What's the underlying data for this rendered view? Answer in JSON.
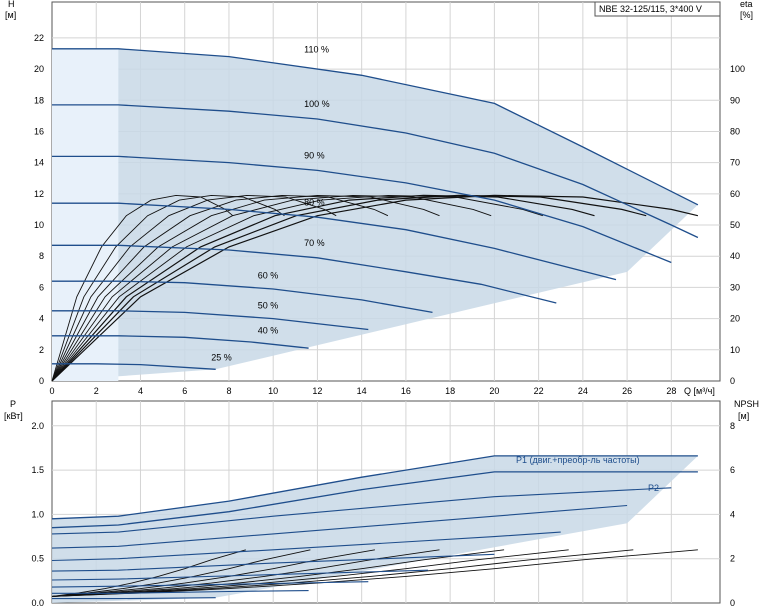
{
  "chart_data": [
    {
      "type": "line",
      "title": "NBE 32-125/115, 3*400 V",
      "y_label_left": "H",
      "y_unit_left": "[м]",
      "y_label_right": "eta",
      "y_unit_right": "[%]",
      "x_label": "Q [м³/ч]",
      "x_ticks": [
        0,
        2,
        4,
        6,
        8,
        10,
        12,
        14,
        16,
        18,
        20,
        22,
        24,
        26,
        28
      ],
      "xlim": [
        0,
        30.2
      ],
      "y_ticks_left": [
        0,
        2,
        4,
        6,
        8,
        10,
        12,
        14,
        16,
        18,
        20,
        22
      ],
      "ylim_left": [
        0,
        24.3
      ],
      "y_ticks_right": [
        0,
        10,
        20,
        30,
        40,
        50,
        60,
        70,
        80,
        90,
        100
      ],
      "ylim_right": [
        0,
        121.5
      ],
      "grid": true,
      "speed_curves": [
        {
          "name": "110 %",
          "x": [
            0,
            3,
            8,
            14,
            20,
            24,
            29.2
          ],
          "y": [
            21.3,
            21.3,
            20.8,
            19.6,
            17.8,
            15.0,
            11.3
          ]
        },
        {
          "name": "100 %",
          "x": [
            0,
            3,
            8,
            12,
            16,
            20,
            24,
            28,
            29.2
          ],
          "y": [
            17.7,
            17.7,
            17.3,
            16.8,
            15.9,
            14.6,
            12.6,
            10.0,
            9.2
          ]
        },
        {
          "name": "90 %",
          "x": [
            0,
            3,
            8,
            12,
            16,
            20,
            24,
            28
          ],
          "y": [
            14.4,
            14.4,
            14.0,
            13.5,
            12.7,
            11.6,
            9.9,
            7.6
          ]
        },
        {
          "name": "80 %",
          "x": [
            0,
            3,
            8,
            12,
            16,
            20,
            25.5
          ],
          "y": [
            11.4,
            11.4,
            11.0,
            10.5,
            9.7,
            8.5,
            6.5
          ]
        },
        {
          "name": "70 %",
          "x": [
            0,
            3,
            8,
            12,
            16,
            19.4,
            22.8
          ],
          "y": [
            8.7,
            8.7,
            8.4,
            7.9,
            7.0,
            6.2,
            5.0
          ]
        },
        {
          "name": "60 %",
          "x": [
            0,
            3,
            6,
            10,
            14,
            17.2
          ],
          "y": [
            6.4,
            6.4,
            6.3,
            5.9,
            5.2,
            4.4
          ]
        },
        {
          "name": "50 %",
          "x": [
            0,
            3,
            6,
            10,
            14.3
          ],
          "y": [
            4.5,
            4.5,
            4.4,
            4.0,
            3.3
          ]
        },
        {
          "name": "40 %",
          "x": [
            0,
            3,
            6,
            9,
            11.6
          ],
          "y": [
            2.9,
            2.9,
            2.8,
            2.5,
            2.1
          ]
        },
        {
          "name": "25 %",
          "x": [
            0,
            2,
            4,
            7.4
          ],
          "y": [
            1.1,
            1.1,
            1.05,
            0.75
          ]
        }
      ],
      "efficiency_curve_100": {
        "x": [
          0,
          4,
          8,
          12,
          16,
          20,
          24,
          28,
          29.2
        ],
        "eta": [
          0,
          27,
          43,
          53,
          58,
          59.5,
          59,
          55,
          53
        ]
      }
    },
    {
      "type": "line",
      "y_label_left": "P",
      "y_unit_left": "[кВт]",
      "y_label_right": "NPSH",
      "y_unit_right": "[м]",
      "y_ticks_left": [
        0.0,
        0.5,
        1.0,
        1.5,
        2.0
      ],
      "ylim_left": [
        0,
        2.28
      ],
      "y_ticks_right": [
        0,
        2,
        4,
        6,
        8
      ],
      "ylim_right": [
        0,
        9.12
      ],
      "xlim": [
        0,
        30.2
      ],
      "grid": true,
      "annotations": [
        "P1 (двиг.+преобр-ль частоты)",
        "P2"
      ],
      "power_curves": [
        {
          "name": "P1 (двиг.+преобр-ль частоты)",
          "x": [
            0,
            3,
            8,
            14,
            20,
            24,
            29.2
          ],
          "y": [
            0.95,
            0.98,
            1.15,
            1.42,
            1.66,
            1.66,
            1.66
          ]
        },
        {
          "name": "P2",
          "x": [
            0,
            3,
            8,
            14,
            20,
            24,
            29.2
          ],
          "y": [
            0.85,
            0.88,
            1.03,
            1.28,
            1.48,
            1.48,
            1.48
          ]
        },
        {
          "name": "",
          "x": [
            0,
            3,
            10,
            20,
            28
          ],
          "y": [
            0.78,
            0.8,
            0.98,
            1.2,
            1.3
          ]
        },
        {
          "name": "",
          "x": [
            0,
            3,
            10,
            20,
            26
          ],
          "y": [
            0.62,
            0.64,
            0.78,
            0.98,
            1.1
          ]
        },
        {
          "name": "",
          "x": [
            0,
            3,
            10,
            20,
            23
          ],
          "y": [
            0.48,
            0.5,
            0.6,
            0.75,
            0.8
          ]
        },
        {
          "name": "",
          "x": [
            0,
            3,
            10,
            20
          ],
          "y": [
            0.36,
            0.37,
            0.45,
            0.55
          ]
        },
        {
          "name": "",
          "x": [
            0,
            3,
            10,
            17
          ],
          "y": [
            0.26,
            0.27,
            0.32,
            0.37
          ]
        },
        {
          "name": "",
          "x": [
            0,
            3,
            10,
            14.3
          ],
          "y": [
            0.18,
            0.19,
            0.22,
            0.24
          ]
        },
        {
          "name": "",
          "x": [
            0,
            3,
            8,
            11.6
          ],
          "y": [
            0.11,
            0.11,
            0.13,
            0.14
          ]
        },
        {
          "name": "",
          "x": [
            0,
            3,
            7.4
          ],
          "y": [
            0.05,
            0.05,
            0.06
          ]
        }
      ],
      "npsh_curve": {
        "x": [
          0,
          4,
          8,
          12,
          16,
          20,
          24,
          29.2
        ],
        "y": [
          0.3,
          0.45,
          0.65,
          0.9,
          1.2,
          1.55,
          1.95,
          2.4
        ]
      }
    }
  ]
}
